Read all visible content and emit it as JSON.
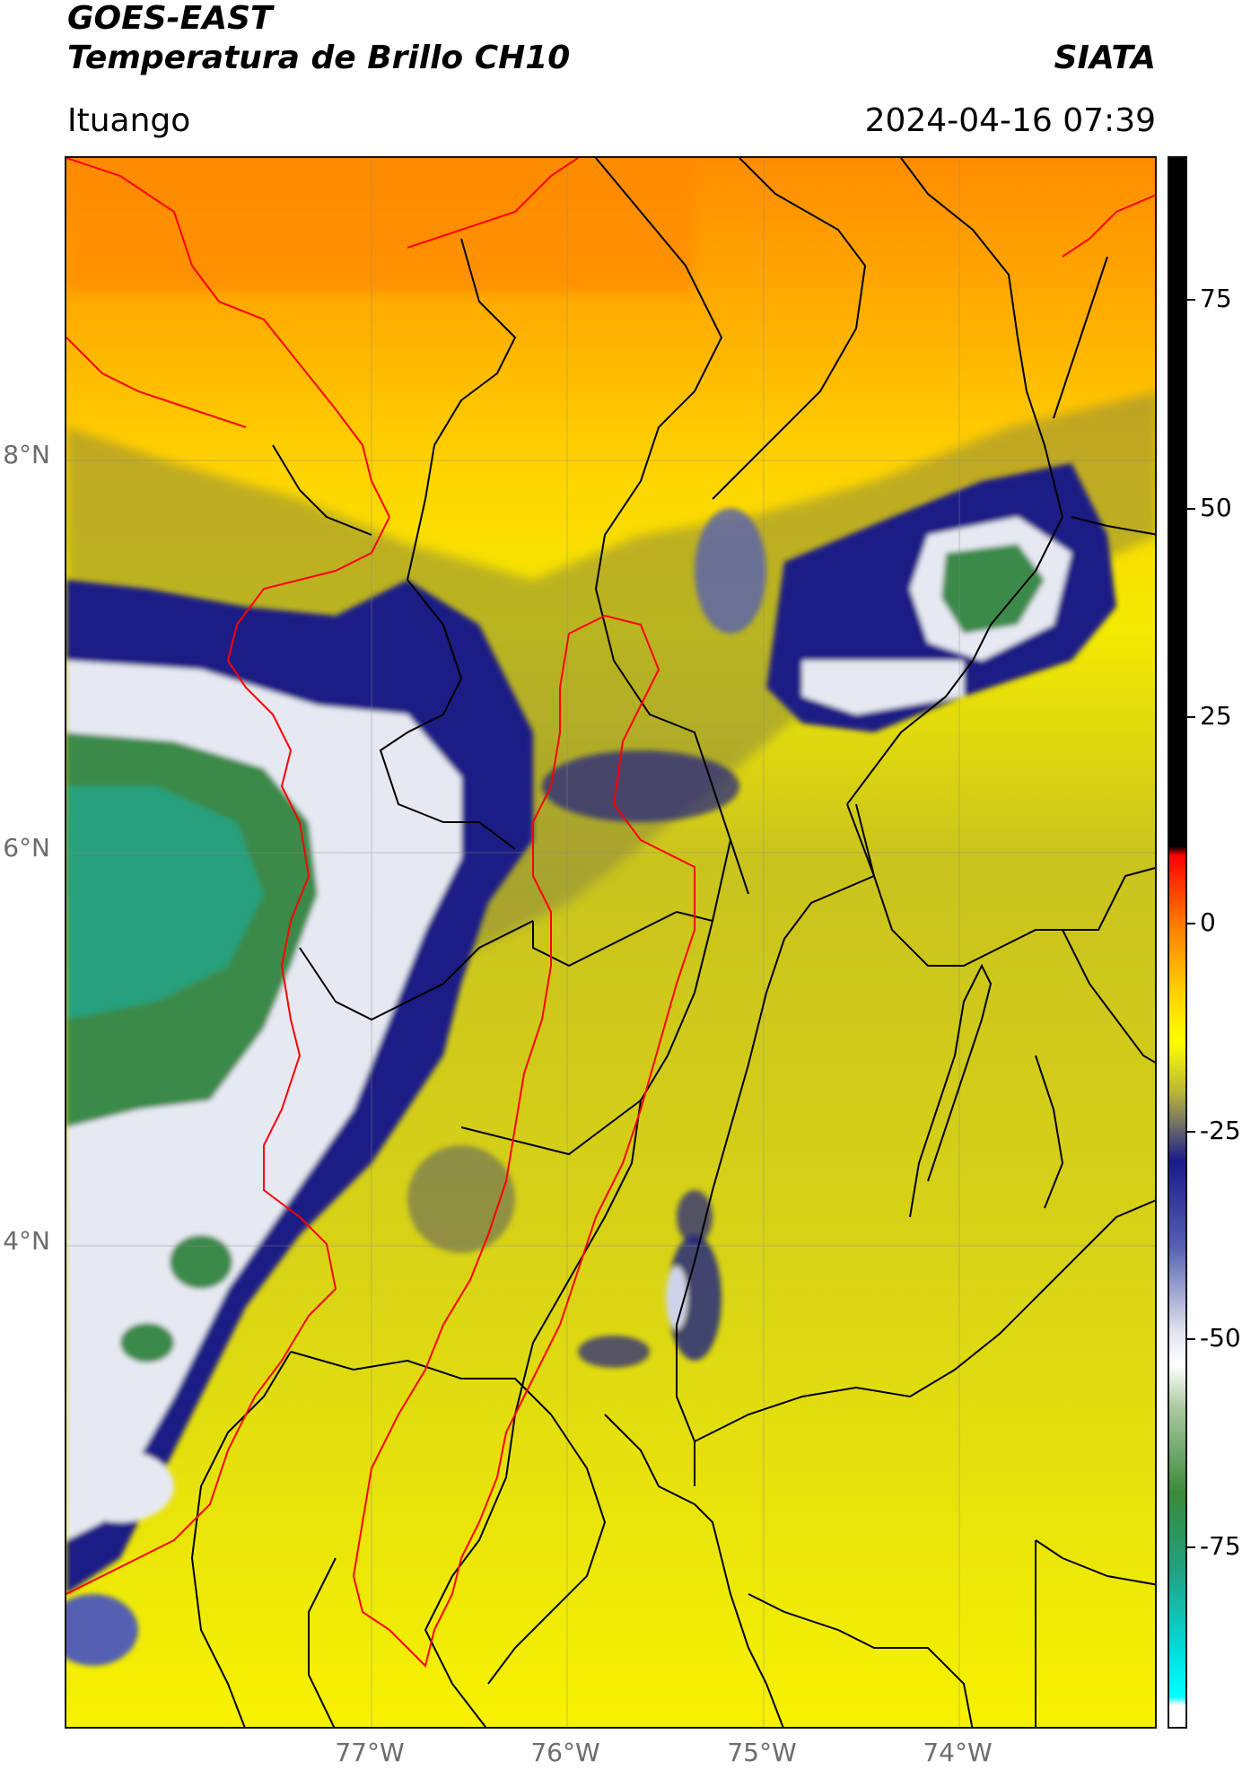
{
  "header": {
    "satellite": "GOES-EAST",
    "product": "Temperatura de Brillo CH10",
    "brand": "SIATA",
    "region": "Ituango",
    "datetime": "2024-04-16 07:39"
  },
  "map": {
    "latitude_ticks": [
      "8°N",
      "6°N",
      "4°N"
    ],
    "longitude_ticks": [
      "77°W",
      "76°W",
      "75°W",
      "74°W"
    ],
    "gridlines": true,
    "borders": {
      "departments": "#000000",
      "highlighted_region": "#ff0000",
      "coastline": "#ff0000"
    }
  },
  "colorbar": {
    "ticks": [
      "75",
      "50",
      "25",
      "0",
      "-25",
      "-50",
      "-75"
    ],
    "range": [
      -95,
      90
    ],
    "units_shown": "",
    "stops": [
      {
        "value": 90,
        "color": "#000000"
      },
      {
        "value": 9,
        "color": "#000000"
      },
      {
        "value": 8,
        "color": "#ff0000"
      },
      {
        "value": 0,
        "color": "#ff7a00"
      },
      {
        "value": -8,
        "color": "#ffd000"
      },
      {
        "value": -14,
        "color": "#ffff00"
      },
      {
        "value": -20,
        "color": "#b9b43a"
      },
      {
        "value": -24,
        "color": "#6a6a6a"
      },
      {
        "value": -28,
        "color": "#1a1a8a"
      },
      {
        "value": -38,
        "color": "#5560b0"
      },
      {
        "value": -48,
        "color": "#dfe3ee"
      },
      {
        "value": -52,
        "color": "#ffffff"
      },
      {
        "value": -57,
        "color": "#aacaa0"
      },
      {
        "value": -67,
        "color": "#3a8a3a"
      },
      {
        "value": -76,
        "color": "#22a080"
      },
      {
        "value": -86,
        "color": "#00e0e0"
      },
      {
        "value": -91,
        "color": "#00ffff"
      },
      {
        "value": -92,
        "color": "#ffffff"
      }
    ]
  }
}
